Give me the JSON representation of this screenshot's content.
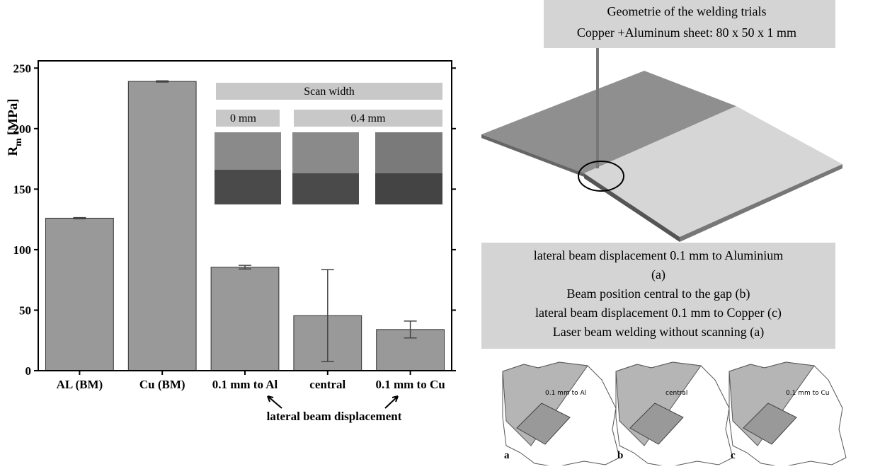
{
  "chart_data": {
    "type": "bar",
    "ylabel_parts": [
      "R",
      "m",
      "[MPa]"
    ],
    "categories": [
      "AL (BM)",
      "Cu (BM)",
      "0.1 mm to Al",
      "central",
      "0.1 mm to Cu"
    ],
    "values": [
      126,
      239,
      85.5,
      45.5,
      34
    ],
    "errors": [
      0.5,
      0.5,
      1.5,
      38,
      7
    ],
    "color": "#999999",
    "ylim": [
      0,
      256
    ],
    "yticks": [
      0,
      50,
      100,
      150,
      200,
      250
    ],
    "annotations": {
      "group_label": "lateral beam displacement",
      "scan_width": "Scan width",
      "scan_0": "0 mm",
      "scan_04": "0.4 mm"
    }
  },
  "diagram": {
    "title_lines": [
      "Geometrie of the welding trials",
      "Copper +Aluminum sheet: 80 x 50 x 1 mm"
    ],
    "legend_lines": [
      "lateral beam displacement 0.1 mm to Aluminium",
      "(a)",
      "Beam position central to the gap (b)",
      "lateral beam displacement 0.1 mm to Copper (c)",
      "Laser beam welding without scanning (a)"
    ],
    "details": [
      {
        "label": "0.1 mm to Al",
        "letter": "a"
      },
      {
        "label": "central",
        "letter": "b"
      },
      {
        "label": "0.1 mm to Cu",
        "letter": "c"
      }
    ]
  }
}
